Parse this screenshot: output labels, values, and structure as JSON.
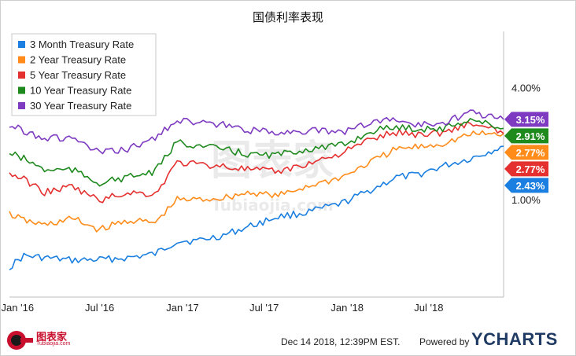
{
  "title": "国债利率表现",
  "footer": {
    "timestamp": "Dec 14 2018, 12:39PM EST.",
    "powered_by": "Powered by",
    "brand": "YCHARTS"
  },
  "watermark": {
    "text": "图表家",
    "sub": "Tubiaojia.com"
  },
  "logo": {
    "text": "图表家",
    "sub": "Tubiaojia.com"
  },
  "chart_data": {
    "type": "line",
    "title": "国债利率表现",
    "xlabel": "",
    "ylabel": "",
    "ylim": [
      -1.6,
      5.5
    ],
    "y_ticks": [
      "4.00%",
      "1.00%"
    ],
    "y_tick_values": [
      4.0,
      1.0
    ],
    "x_ticks": [
      "Jan '16",
      "Jul '16",
      "Jan '17",
      "Jul '17",
      "Jan '18",
      "Jul '18"
    ],
    "x_tick_dates": [
      "2016-01-01",
      "2016-07-01",
      "2017-01-01",
      "2017-07-01",
      "2018-01-01",
      "2018-07-01"
    ],
    "x_range": [
      "2015-12-14",
      "2018-12-14"
    ],
    "grid": false,
    "legend_position": "top-left",
    "series": [
      {
        "name": "3 Month Treasury Rate",
        "color": "#1a7fe0",
        "last_label": "2.43%",
        "points": [
          [
            "2015-12-14",
            -0.8
          ],
          [
            "2016-01-15",
            -0.5
          ],
          [
            "2016-03-01",
            -0.55
          ],
          [
            "2016-05-01",
            -0.62
          ],
          [
            "2016-07-01",
            -0.6
          ],
          [
            "2016-09-01",
            -0.55
          ],
          [
            "2016-11-01",
            -0.45
          ],
          [
            "2016-12-20",
            -0.1
          ],
          [
            "2017-02-01",
            -0.1
          ],
          [
            "2017-04-01",
            0.05
          ],
          [
            "2017-06-01",
            0.3
          ],
          [
            "2017-08-01",
            0.55
          ],
          [
            "2017-10-01",
            0.65
          ],
          [
            "2017-12-20",
            0.9
          ],
          [
            "2018-03-01",
            1.3
          ],
          [
            "2018-04-20",
            1.6
          ],
          [
            "2018-06-01",
            1.65
          ],
          [
            "2018-08-01",
            1.9
          ],
          [
            "2018-10-01",
            2.1
          ],
          [
            "2018-12-14",
            2.43
          ]
        ]
      },
      {
        "name": "2 Year Treasury Rate",
        "color": "#ff8c1a",
        "last_label": "2.77%",
        "points": [
          [
            "2015-12-14",
            0.62
          ],
          [
            "2016-01-15",
            0.45
          ],
          [
            "2016-03-01",
            0.32
          ],
          [
            "2016-05-01",
            0.5
          ],
          [
            "2016-07-01",
            0.2
          ],
          [
            "2016-09-01",
            0.45
          ],
          [
            "2016-11-01",
            0.38
          ],
          [
            "2016-12-20",
            1.0
          ],
          [
            "2017-02-01",
            1.0
          ],
          [
            "2017-04-01",
            1.05
          ],
          [
            "2017-06-01",
            1.2
          ],
          [
            "2017-08-01",
            1.1
          ],
          [
            "2017-10-01",
            1.35
          ],
          [
            "2017-12-20",
            1.6
          ],
          [
            "2018-03-01",
            2.05
          ],
          [
            "2018-04-20",
            2.35
          ],
          [
            "2018-06-01",
            2.4
          ],
          [
            "2018-08-01",
            2.5
          ],
          [
            "2018-10-01",
            2.75
          ],
          [
            "2018-12-14",
            2.77
          ]
        ]
      },
      {
        "name": "5 Year Treasury Rate",
        "color": "#e53030",
        "last_label": "2.77%",
        "points": [
          [
            "2015-12-14",
            1.7
          ],
          [
            "2016-01-15",
            1.55
          ],
          [
            "2016-03-01",
            1.2
          ],
          [
            "2016-05-01",
            1.35
          ],
          [
            "2016-07-01",
            0.98
          ],
          [
            "2016-09-01",
            1.2
          ],
          [
            "2016-11-01",
            1.15
          ],
          [
            "2016-12-20",
            2.0
          ],
          [
            "2017-02-01",
            1.95
          ],
          [
            "2017-04-01",
            1.9
          ],
          [
            "2017-06-01",
            1.8
          ],
          [
            "2017-08-01",
            1.75
          ],
          [
            "2017-10-01",
            1.95
          ],
          [
            "2017-12-20",
            2.25
          ],
          [
            "2018-03-01",
            2.65
          ],
          [
            "2018-04-20",
            2.8
          ],
          [
            "2018-06-01",
            2.75
          ],
          [
            "2018-08-01",
            2.8
          ],
          [
            "2018-10-01",
            3.05
          ],
          [
            "2018-12-14",
            2.77
          ]
        ]
      },
      {
        "name": "10 Year Treasury Rate",
        "color": "#1e8a1e",
        "last_label": "2.91%",
        "points": [
          [
            "2015-12-14",
            2.25
          ],
          [
            "2016-01-15",
            2.1
          ],
          [
            "2016-03-01",
            1.8
          ],
          [
            "2016-05-01",
            1.8
          ],
          [
            "2016-07-01",
            1.45
          ],
          [
            "2016-09-01",
            1.6
          ],
          [
            "2016-11-01",
            1.75
          ],
          [
            "2016-12-20",
            2.55
          ],
          [
            "2017-02-01",
            2.45
          ],
          [
            "2017-04-01",
            2.35
          ],
          [
            "2017-06-01",
            2.2
          ],
          [
            "2017-08-01",
            2.2
          ],
          [
            "2017-10-01",
            2.35
          ],
          [
            "2017-12-20",
            2.45
          ],
          [
            "2018-03-01",
            2.85
          ],
          [
            "2018-04-20",
            2.95
          ],
          [
            "2018-06-01",
            2.9
          ],
          [
            "2018-08-01",
            2.9
          ],
          [
            "2018-10-01",
            3.15
          ],
          [
            "2018-12-14",
            2.91
          ]
        ]
      },
      {
        "name": "30 Year Treasury Rate",
        "color": "#7e3bc1",
        "last_label": "3.15%",
        "points": [
          [
            "2015-12-14",
            3.0
          ],
          [
            "2016-01-15",
            2.85
          ],
          [
            "2016-03-01",
            2.65
          ],
          [
            "2016-05-01",
            2.65
          ],
          [
            "2016-07-01",
            2.25
          ],
          [
            "2016-09-01",
            2.35
          ],
          [
            "2016-11-01",
            2.65
          ],
          [
            "2016-12-20",
            3.15
          ],
          [
            "2017-02-01",
            3.05
          ],
          [
            "2017-04-01",
            3.0
          ],
          [
            "2017-06-01",
            2.85
          ],
          [
            "2017-08-01",
            2.8
          ],
          [
            "2017-10-01",
            2.85
          ],
          [
            "2017-12-20",
            2.8
          ],
          [
            "2018-03-01",
            3.1
          ],
          [
            "2018-04-20",
            3.15
          ],
          [
            "2018-06-01",
            3.0
          ],
          [
            "2018-08-01",
            3.05
          ],
          [
            "2018-10-01",
            3.35
          ],
          [
            "2018-12-14",
            3.15
          ]
        ]
      }
    ]
  }
}
